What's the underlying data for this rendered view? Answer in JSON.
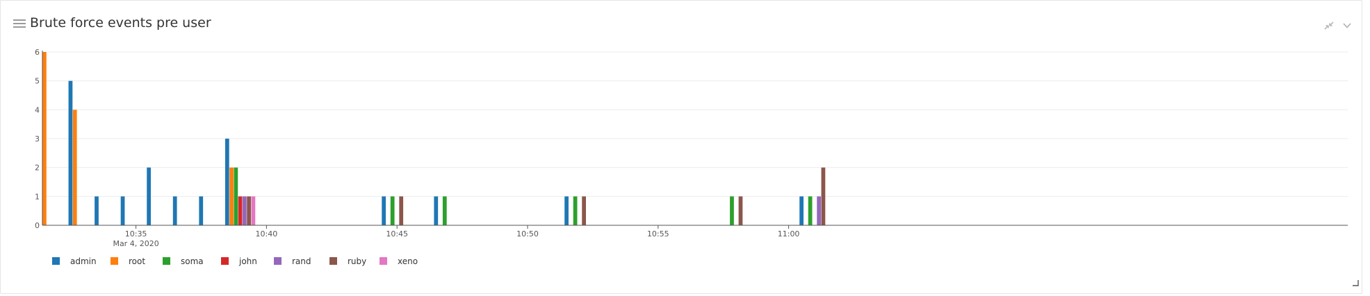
{
  "panel": {
    "title": "Brute force events pre user",
    "icons": {
      "menu": "hamburger-menu-icon",
      "minimize": "minimize-arrows-icon",
      "dropdown": "chevron-down-icon",
      "resize": "resize-corner-icon"
    }
  },
  "chart_data": {
    "type": "bar",
    "title": "Brute force events pre user",
    "xlabel": "",
    "ylabel": "",
    "ylim": [
      0,
      6
    ],
    "yticks": [
      0,
      1,
      2,
      3,
      4,
      5,
      6
    ],
    "x_domain": [
      "10:31:25",
      "11:01:15"
    ],
    "x_ticks": [
      {
        "time": "10:35",
        "label": "10:35",
        "sublabel": "Mar 4, 2020"
      },
      {
        "time": "10:40",
        "label": "10:40",
        "sublabel": ""
      },
      {
        "time": "10:45",
        "label": "10:45",
        "sublabel": ""
      },
      {
        "time": "10:50",
        "label": "10:50",
        "sublabel": ""
      },
      {
        "time": "10:55",
        "label": "10:55",
        "sublabel": ""
      },
      {
        "time": "11:00",
        "label": "11:00",
        "sublabel": ""
      }
    ],
    "grid": true,
    "legend_position": "bottom-left",
    "bar_interval_seconds": 10,
    "series": [
      {
        "name": "admin",
        "color": "#1f77b4",
        "points": [
          [
            "10:32:25",
            5
          ],
          [
            "10:33:25",
            1
          ],
          [
            "10:34:25",
            1
          ],
          [
            "10:35:25",
            2
          ],
          [
            "10:36:25",
            1
          ],
          [
            "10:37:25",
            1
          ],
          [
            "10:38:25",
            3
          ],
          [
            "10:44:25",
            1
          ],
          [
            "10:46:25",
            1
          ],
          [
            "10:51:25",
            1
          ],
          [
            "11:00:25",
            1
          ]
        ]
      },
      {
        "name": "root",
        "color": "#ff7f0e",
        "points": [
          [
            "10:31:25",
            6
          ],
          [
            "10:32:35",
            4
          ],
          [
            "10:38:35",
            2
          ]
        ]
      },
      {
        "name": "soma",
        "color": "#2ca02c",
        "points": [
          [
            "10:38:45",
            2
          ],
          [
            "10:44:45",
            1
          ],
          [
            "10:46:45",
            1
          ],
          [
            "10:51:45",
            1
          ],
          [
            "10:57:45",
            1
          ],
          [
            "11:00:45",
            1
          ]
        ]
      },
      {
        "name": "john",
        "color": "#d62728",
        "points": [
          [
            "10:38:55",
            1
          ]
        ]
      },
      {
        "name": "rand",
        "color": "#9467bd",
        "points": [
          [
            "10:39:05",
            1
          ],
          [
            "11:01:05",
            1
          ]
        ]
      },
      {
        "name": "ruby",
        "color": "#8c564b",
        "points": [
          [
            "10:39:15",
            1
          ],
          [
            "10:45:05",
            1
          ],
          [
            "10:52:05",
            1
          ],
          [
            "10:58:05",
            1
          ],
          [
            "11:01:15",
            2
          ]
        ]
      },
      {
        "name": "xeno",
        "color": "#e377c2",
        "points": [
          [
            "10:39:25",
            1
          ]
        ]
      }
    ]
  }
}
